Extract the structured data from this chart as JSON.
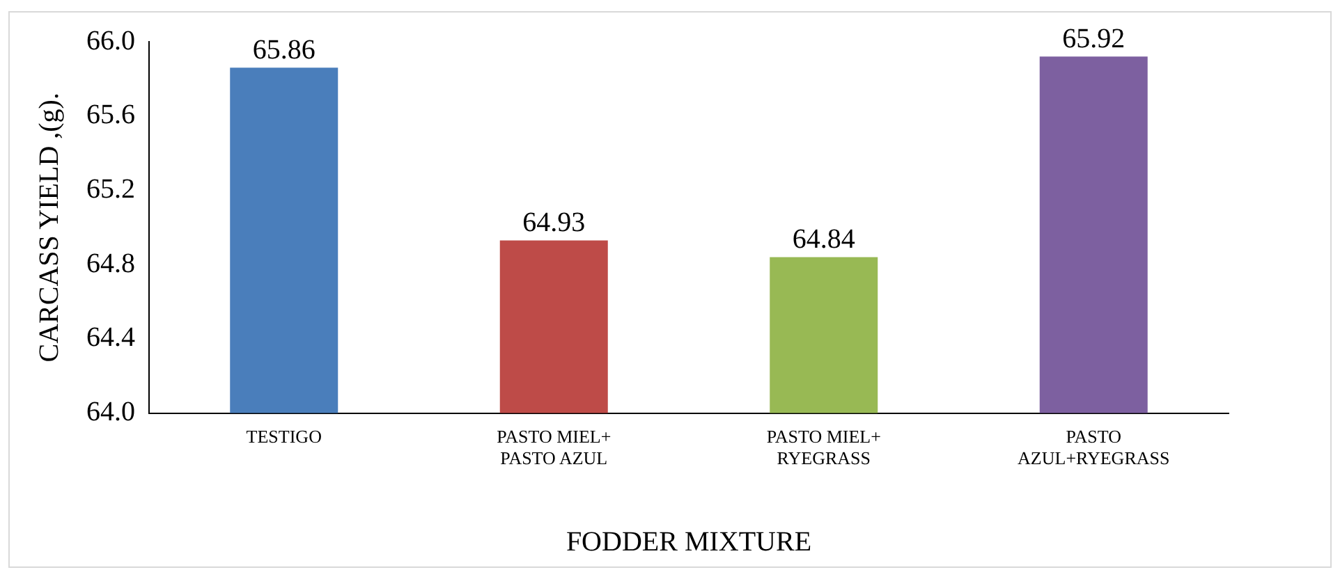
{
  "chart_data": {
    "type": "bar",
    "xlabel": "FODDER MIXTURE",
    "ylabel": "CARCASS YIELD ,(g).",
    "categories": [
      "TESTIGO",
      "PASTO MIEL+\nPASTO AZUL",
      "PASTO MIEL+\nRYEGRASS",
      "PASTO\nAZUL+RYEGRASS"
    ],
    "values": [
      65.86,
      64.93,
      64.84,
      65.92
    ],
    "colors": [
      "#4a7ebb",
      "#be4b48",
      "#98b954",
      "#7d60a0"
    ],
    "ylim": [
      64.0,
      66.0
    ],
    "yticks": [
      {
        "value": 64.0,
        "label": "64.0"
      },
      64.4,
      64.8,
      65.2,
      65.6,
      {
        "value": 66.0,
        "label": "66.0"
      }
    ],
    "grid": false,
    "legend": false,
    "data_labels": true
  }
}
